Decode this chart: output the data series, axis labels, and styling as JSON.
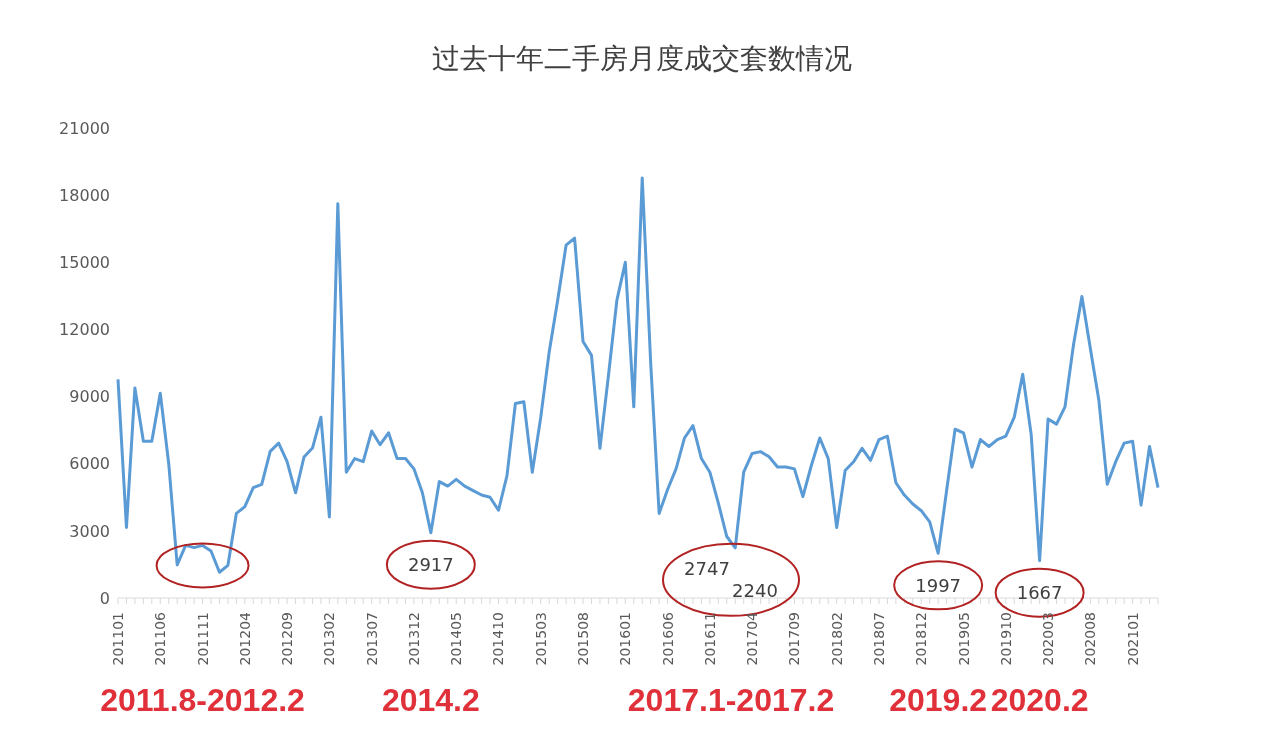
{
  "chart_data": {
    "type": "line",
    "title": "过去十年二手房月度成交套数情况",
    "categories": [
      "201101",
      null,
      null,
      null,
      null,
      "201106",
      null,
      null,
      null,
      null,
      "201111",
      null,
      null,
      null,
      null,
      "201204",
      null,
      null,
      null,
      null,
      "201209",
      null,
      null,
      null,
      null,
      "201302",
      null,
      null,
      null,
      null,
      "201307",
      null,
      null,
      null,
      null,
      "201312",
      null,
      null,
      null,
      null,
      "201405",
      null,
      null,
      null,
      null,
      "201410",
      null,
      null,
      null,
      null,
      "201503",
      null,
      null,
      null,
      null,
      "201508",
      null,
      null,
      null,
      null,
      "201601",
      null,
      null,
      null,
      null,
      "201606",
      null,
      null,
      null,
      null,
      "201611",
      null,
      null,
      null,
      null,
      "201704",
      null,
      null,
      null,
      null,
      "201709",
      null,
      null,
      null,
      null,
      "201802",
      null,
      null,
      null,
      null,
      "201807",
      null,
      null,
      null,
      null,
      "201812",
      null,
      null,
      null,
      null,
      "201905",
      null,
      null,
      null,
      null,
      "201910",
      null,
      null,
      null,
      null,
      "202003",
      null,
      null,
      null,
      null,
      "202008",
      null,
      null,
      null,
      null,
      "202101",
      null,
      null,
      null
    ],
    "series": [
      {
        "color": "#5b9bd5",
        "values": [
          9770,
          3150,
          9380,
          7000,
          7000,
          9150,
          6000,
          1480,
          2350,
          2250,
          2350,
          2100,
          1150,
          1460,
          3780,
          4080,
          4930,
          5080,
          6550,
          6920,
          6090,
          4700,
          6300,
          6700,
          8080,
          3620,
          17620,
          5620,
          6230,
          6090,
          7460,
          6850,
          7380,
          6230,
          6230,
          5770,
          4700,
          2917,
          5200,
          5000,
          5300,
          5000,
          4800,
          4600,
          4500,
          3920,
          5460,
          8690,
          8770,
          5620,
          8080,
          11000,
          13300,
          15770,
          16080,
          11460,
          10840,
          6690,
          9920,
          13300,
          15000,
          8540,
          18770,
          10500,
          3780,
          4850,
          5770,
          7150,
          7700,
          6230,
          5620,
          4240,
          2747,
          2240,
          5620,
          6460,
          6540,
          6310,
          5850,
          5850,
          5770,
          4530,
          5920,
          7150,
          6230,
          3150,
          5700,
          6090,
          6690,
          6150,
          7080,
          7230,
          5150,
          4600,
          4200,
          3900,
          3400,
          1997,
          4800,
          7540,
          7380,
          5850,
          7080,
          6770,
          7080,
          7230,
          8080,
          10000,
          7310,
          1667,
          8000,
          7770,
          8540,
          11300,
          13470,
          11150,
          8850,
          5080,
          6090,
          6920,
          7000,
          4150,
          6770,
          4930
        ]
      }
    ],
    "ylim": [
      0,
      21000
    ],
    "yticks": [
      0,
      3000,
      6000,
      9000,
      12000,
      15000,
      18000,
      21000
    ],
    "marker": "none",
    "line_style": "solid",
    "legend": false,
    "grid": false,
    "annotations": [
      "2011.8-2012.2",
      "2014.2",
      "2017.1-2017.2",
      "2019.2",
      "2020.2",
      "2917",
      "2747",
      "2240",
      "1997",
      "1667"
    ]
  }
}
